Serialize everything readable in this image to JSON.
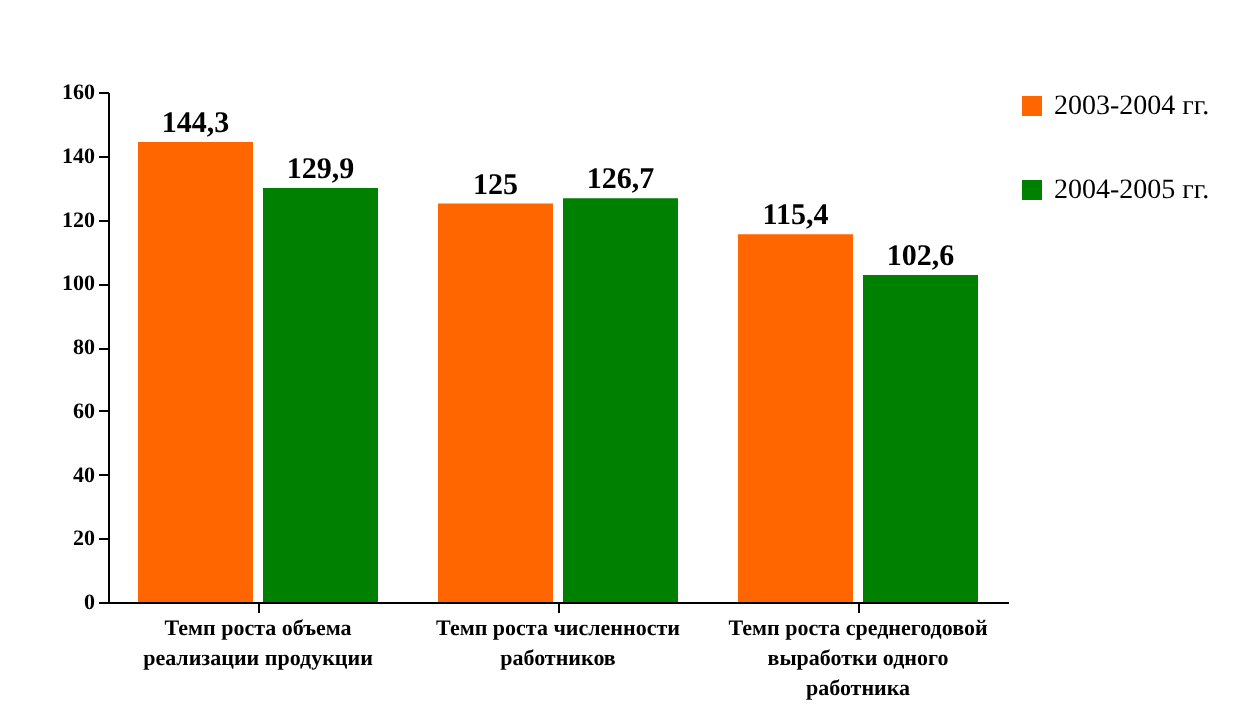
{
  "chart_data": {
    "type": "bar",
    "categories": [
      "Темп роста объема реализации продукции",
      "Темп роста численности работников",
      "Темп роста среднегодовой выработки одного работника"
    ],
    "series": [
      {
        "name": "2003-2004 гг.",
        "color": "#ff6600",
        "values": [
          144.3,
          125,
          115.4
        ],
        "value_labels": [
          "144,3",
          "125",
          "115,4"
        ]
      },
      {
        "name": "2004-2005 гг.",
        "color": "#008000",
        "values": [
          129.9,
          126.7,
          102.6
        ],
        "value_labels": [
          "129,9",
          "126,7",
          "102,6"
        ]
      }
    ],
    "ylim": [
      0,
      160
    ],
    "yticks": [
      0,
      20,
      40,
      60,
      80,
      100,
      120,
      140,
      160
    ],
    "grid": false,
    "legend": "top right"
  }
}
